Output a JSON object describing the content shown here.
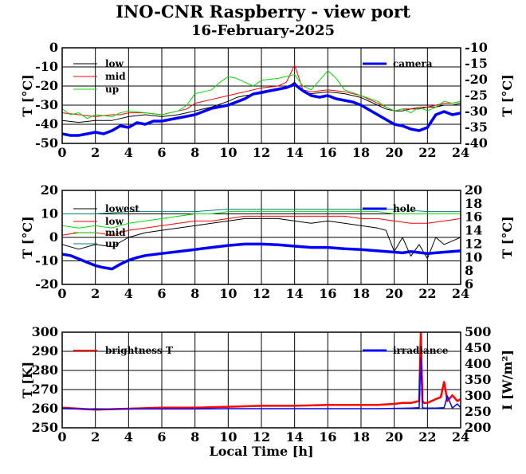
{
  "header": {
    "title": "INO-CNR Raspberry - view port",
    "subtitle": "16-February-2025"
  },
  "colors": {
    "black": "#000000",
    "red": "#ff0000",
    "green": "#00dd00",
    "blue": "#0000ff",
    "teal": "#008080"
  },
  "chart_data": [
    {
      "type": "line",
      "xlabel": "",
      "xlim": [
        0,
        24
      ],
      "xticks": [
        0,
        2,
        4,
        6,
        8,
        10,
        12,
        14,
        16,
        18,
        20,
        22,
        24
      ],
      "ylabel": "T [°C]",
      "ylim": [
        -50,
        0
      ],
      "yticks": [
        -50,
        -40,
        -30,
        -20,
        -10,
        0
      ],
      "y2label": "T [°C]",
      "y2lim": [
        -40,
        -10
      ],
      "y2ticks": [
        -40,
        -35,
        -30,
        -25,
        -20,
        -15,
        -10
      ],
      "grid": true,
      "series": [
        {
          "name": "low",
          "color": "#000000",
          "width": 1,
          "x": [
            0,
            1,
            2,
            3,
            3.5,
            4,
            5,
            6,
            7,
            7.5,
            8,
            9,
            10,
            10.5,
            11,
            12,
            13,
            13.5,
            14,
            14.5,
            15,
            16,
            17,
            18,
            19,
            19.5,
            20,
            20.5,
            21,
            21.5,
            22,
            22.5,
            23,
            23.5,
            24
          ],
          "y": [
            -38,
            -39,
            -38,
            -38,
            -37,
            -36,
            -35,
            -36,
            -35,
            -34,
            -33,
            -31,
            -28,
            -26,
            -25,
            -24,
            -22,
            -21,
            -18,
            -23,
            -24,
            -23,
            -24,
            -26,
            -30,
            -32,
            -33,
            -33,
            -32,
            -32,
            -31,
            -31,
            -30,
            -30,
            -29
          ]
        },
        {
          "name": "mid",
          "color": "#ff0000",
          "width": 1,
          "x": [
            0,
            1,
            2,
            3,
            3.5,
            4,
            5,
            6,
            7,
            7.5,
            8,
            9,
            10,
            10.5,
            11,
            12,
            13,
            13.5,
            14,
            14.5,
            15,
            16,
            17,
            18,
            19,
            19.5,
            20,
            20.5,
            21,
            21.5,
            22,
            22.5,
            23,
            23.5,
            24
          ],
          "y": [
            -34,
            -35,
            -36,
            -35,
            -35,
            -34,
            -34,
            -35,
            -33,
            -32,
            -29,
            -27,
            -25,
            -24,
            -23,
            -21,
            -20,
            -18,
            -9,
            -22,
            -23,
            -22,
            -23,
            -25,
            -29,
            -31,
            -33,
            -32,
            -32,
            -31,
            -31,
            -30,
            -29,
            -29,
            -28
          ]
        },
        {
          "name": "up",
          "color": "#00dd00",
          "width": 1,
          "x": [
            0,
            0.5,
            1,
            1.5,
            2,
            3,
            3.5,
            4,
            5,
            6,
            7,
            7.5,
            8,
            9,
            9.5,
            10,
            10.5,
            11,
            11.5,
            12,
            13,
            13.5,
            14,
            14.5,
            15,
            15.5,
            16,
            16.5,
            17,
            18,
            19,
            19.5,
            20,
            20.5,
            21,
            21.5,
            22,
            22.5,
            23,
            23.5,
            24
          ],
          "y": [
            -32,
            -35,
            -34,
            -37,
            -35,
            -36,
            -34,
            -33,
            -34,
            -35,
            -33,
            -30,
            -24,
            -22,
            -18,
            -15,
            -16,
            -18,
            -20,
            -17,
            -16,
            -15,
            -14,
            -20,
            -22,
            -17,
            -12,
            -16,
            -22,
            -25,
            -28,
            -31,
            -33,
            -32,
            -34,
            -31,
            -33,
            -31,
            -28,
            -29,
            -28
          ]
        },
        {
          "name": "camera",
          "color": "#0000ff",
          "width": 3.5,
          "axis": "y2",
          "x": [
            0,
            0.5,
            1,
            1.5,
            2,
            2.5,
            3,
            3.5,
            4,
            4.5,
            5,
            5.5,
            6,
            6.5,
            7,
            7.5,
            8,
            8.5,
            9,
            9.5,
            10,
            10.5,
            11,
            11.5,
            12,
            12.5,
            13,
            13.5,
            14,
            14.5,
            15,
            15.5,
            16,
            16.5,
            17,
            17.5,
            18,
            18.5,
            19,
            19.5,
            20,
            20.5,
            21,
            21.5,
            22,
            22.5,
            23,
            23.5,
            24
          ],
          "y": [
            -37,
            -37.5,
            -37.5,
            -37,
            -36.5,
            -37,
            -36,
            -34.5,
            -35,
            -33.5,
            -34,
            -33,
            -33,
            -32.5,
            -32,
            -31.5,
            -31,
            -30,
            -29,
            -28.5,
            -28,
            -27,
            -26,
            -24.5,
            -24,
            -23.5,
            -23,
            -22.5,
            -21.5,
            -23.5,
            -25,
            -25.5,
            -25,
            -26,
            -26.5,
            -27,
            -28,
            -29.5,
            -31,
            -32.5,
            -34,
            -34.5,
            -35.5,
            -36,
            -35,
            -31,
            -30,
            -31,
            -30.5
          ]
        }
      ],
      "legend": [
        "low",
        "mid",
        "up",
        "camera"
      ]
    },
    {
      "type": "line",
      "xlabel": "",
      "xlim": [
        0,
        24
      ],
      "xticks": [
        0,
        2,
        4,
        6,
        8,
        10,
        12,
        14,
        16,
        18,
        20,
        22,
        24
      ],
      "ylabel": "T [°C]",
      "ylim": [
        -20,
        20
      ],
      "yticks": [
        -20,
        -10,
        0,
        10,
        20
      ],
      "y2label": "T [°C]",
      "y2lim": [
        6,
        20
      ],
      "y2ticks": [
        6,
        8,
        10,
        12,
        14,
        16,
        18,
        20
      ],
      "grid": true,
      "series": [
        {
          "name": "lowest",
          "color": "#000000",
          "width": 1,
          "x": [
            0,
            1,
            2,
            3,
            4,
            5,
            6,
            7,
            8,
            9,
            10,
            11,
            12,
            13,
            14,
            15,
            16,
            17,
            18,
            19,
            19.5,
            20,
            20.5,
            21,
            21.5,
            22,
            22.5,
            23,
            24
          ],
          "y": [
            -3,
            -5,
            -3,
            -4,
            0,
            2,
            3,
            4,
            5,
            6,
            7,
            8,
            8,
            8,
            7,
            6,
            7,
            6,
            5,
            4,
            3,
            -6,
            0,
            -8,
            -3,
            -9,
            0,
            -3,
            0
          ]
        },
        {
          "name": "low",
          "color": "#ff0000",
          "width": 1,
          "x": [
            0,
            1,
            2,
            3,
            4,
            5,
            6,
            7,
            8,
            9,
            10,
            11,
            12,
            13,
            14,
            15,
            16,
            17,
            18,
            19,
            20,
            21,
            22,
            23,
            24
          ],
          "y": [
            1,
            2,
            2,
            1,
            3,
            4,
            5,
            6,
            7,
            7,
            8,
            9,
            9,
            9,
            9,
            9,
            9,
            9,
            8,
            8,
            7,
            6,
            6,
            7,
            8
          ]
        },
        {
          "name": "mid",
          "color": "#00dd00",
          "width": 1,
          "x": [
            0,
            1,
            2,
            3,
            4,
            5,
            6,
            7,
            8,
            9,
            10,
            11,
            12,
            13,
            14,
            15,
            16,
            17,
            18,
            19,
            20,
            21,
            22,
            23,
            24
          ],
          "y": [
            5,
            4,
            5,
            4,
            6,
            7,
            8,
            9,
            10,
            10,
            11,
            11,
            11,
            11,
            11,
            11,
            11,
            11,
            11,
            11,
            10,
            10,
            10,
            10,
            10
          ]
        },
        {
          "name": "up",
          "color": "#008080",
          "width": 1,
          "x": [
            0,
            2,
            4,
            6,
            8,
            10,
            12,
            14,
            16,
            18,
            20,
            22,
            24
          ],
          "y": [
            10,
            10,
            11,
            11,
            11,
            12,
            12,
            12,
            12,
            12,
            12,
            11,
            11
          ]
        },
        {
          "name": "hole",
          "color": "#0000ff",
          "width": 3.5,
          "axis": "y2",
          "x": [
            0,
            0.5,
            1,
            1.5,
            2,
            2.5,
            3,
            3.5,
            4,
            4.5,
            5,
            6,
            7,
            8,
            9,
            10,
            11,
            12,
            13,
            14,
            15,
            16,
            17,
            18,
            19,
            20,
            20.5,
            21,
            22,
            23,
            24
          ],
          "y": [
            10.5,
            10.3,
            9.8,
            9.3,
            8.8,
            8.5,
            8.3,
            9.0,
            9.6,
            10.0,
            10.3,
            10.6,
            10.9,
            11.2,
            11.5,
            11.8,
            12.0,
            12.0,
            11.9,
            11.7,
            11.5,
            11.5,
            11.3,
            11.2,
            11.0,
            10.8,
            10.7,
            10.9,
            10.6,
            10.8,
            11.0
          ]
        }
      ],
      "legend": [
        "lowest",
        "low",
        "mid",
        "up",
        "hole"
      ]
    },
    {
      "type": "line",
      "xlabel": "Local Time [h]",
      "xlim": [
        0,
        24
      ],
      "xticks": [
        0,
        2,
        4,
        6,
        8,
        10,
        12,
        14,
        16,
        18,
        20,
        22,
        24
      ],
      "ylabel": "T [K]",
      "ylim": [
        250,
        300
      ],
      "yticks": [
        250,
        260,
        270,
        280,
        290,
        300
      ],
      "y2label": "I [W/m²]",
      "y2lim": [
        200,
        500
      ],
      "y2ticks": [
        200,
        250,
        300,
        350,
        400,
        450,
        500
      ],
      "grid": true,
      "series": [
        {
          "name": "brightness T",
          "color": "#ff0000",
          "width": 2.5,
          "x": [
            0,
            2,
            4,
            6,
            8,
            10,
            12,
            14,
            16,
            18,
            19,
            20,
            20.5,
            21,
            21.5,
            21.6,
            21.7,
            21.8,
            22,
            22.5,
            22.8,
            23,
            23.2,
            23.5,
            23.8,
            24
          ],
          "y": [
            260.5,
            259.5,
            260,
            260.5,
            260.5,
            261,
            261.5,
            261.5,
            262,
            262,
            262,
            262.5,
            263,
            263,
            264,
            300,
            264,
            263,
            263,
            265,
            266,
            274,
            264,
            267,
            264,
            265
          ]
        },
        {
          "name": "irradiance",
          "color": "#0000ff",
          "width": 1.5,
          "axis": "y2",
          "x": [
            0,
            2,
            4,
            6,
            8,
            10,
            12,
            14,
            16,
            18,
            19,
            20,
            21,
            21.5,
            21.6,
            21.7,
            21.8,
            22,
            22.5,
            23,
            23.2,
            23.5,
            23.8,
            24
          ],
          "y": [
            260,
            258,
            259,
            259,
            259,
            260,
            260,
            260,
            260,
            260,
            260,
            261,
            262,
            263,
            420,
            263,
            262,
            262,
            262,
            263,
            300,
            262,
            275,
            263
          ]
        }
      ],
      "legend": [
        "brightness T",
        "irradiance"
      ]
    }
  ]
}
